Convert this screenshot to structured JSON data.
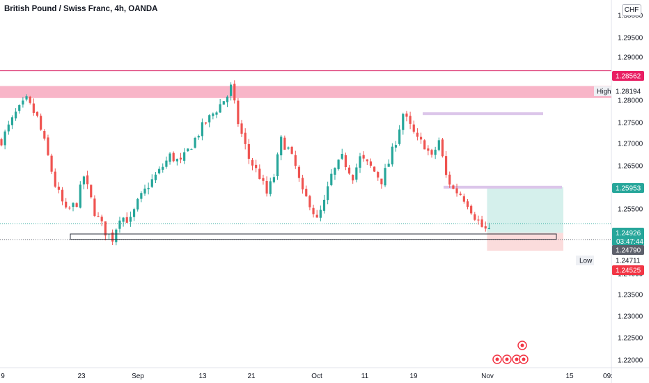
{
  "header": {
    "title": "British Pound / Swiss Franc, 4h, OANDA",
    "currency": "CHF"
  },
  "colors": {
    "up": "#26a69a",
    "down": "#ef5350",
    "resistance_zone": "#f8b5c8",
    "resistance_line": "#d81b60",
    "lavender": "#dcc6ea",
    "target_zone": "#d5f0ec",
    "stop_zone": "#fbdcdc",
    "price_tag": "#26a69a",
    "high_line_tag": "#e91e63",
    "stop_tag": "#f23645",
    "dark_tag": "#5d606b"
  },
  "price_tags": {
    "resistance": "1.28562",
    "high_label": "High",
    "high_value": "1.28194",
    "target": "1.25953",
    "current": "1.24926",
    "countdown": "03:47:44",
    "support": "1.24790",
    "low_label": "Low",
    "low_value": "1.24711",
    "stop": "1.24525"
  },
  "chart_data": {
    "type": "candlestick",
    "title": "British Pound / Swiss Franc, 4h, OANDA",
    "y_ticks": [
      "1.30000",
      "1.29500",
      "1.29000",
      "1.28000",
      "1.27500",
      "1.27000",
      "1.26500",
      "1.25500",
      "1.24000",
      "1.23500",
      "1.23000",
      "1.22500",
      "1.22000"
    ],
    "x_ticks": [
      "9",
      "23",
      "Sep",
      "13",
      "21",
      "Oct",
      "11",
      "19",
      "Nov",
      "15",
      "09:"
    ],
    "ylim": [
      1.219,
      1.3015
    ],
    "close_path": [
      [
        0,
        1.27
      ],
      [
        4,
        1.276
      ],
      [
        7,
        1.279
      ],
      [
        10,
        1.275
      ],
      [
        12,
        1.2695
      ],
      [
        15,
        1.26
      ],
      [
        18,
        1.254
      ],
      [
        21,
        1.256
      ],
      [
        23,
        1.262
      ],
      [
        26,
        1.254
      ],
      [
        29,
        1.2495
      ],
      [
        31,
        1.248
      ],
      [
        33,
        1.253
      ],
      [
        36,
        1.252
      ],
      [
        38,
        1.256
      ],
      [
        41,
        1.26
      ],
      [
        44,
        1.263
      ],
      [
        47,
        1.2665
      ],
      [
        50,
        1.265
      ],
      [
        53,
        1.269
      ],
      [
        56,
        1.273
      ],
      [
        59,
        1.276
      ],
      [
        61,
        1.278
      ],
      [
        63,
        1.28
      ],
      [
        64,
        1.2819
      ],
      [
        66,
        1.274
      ],
      [
        69,
        1.266
      ],
      [
        72,
        1.262
      ],
      [
        74,
        1.258
      ],
      [
        76,
        1.262
      ],
      [
        78,
        1.27
      ],
      [
        80,
        1.268
      ],
      [
        82,
        1.264
      ],
      [
        84,
        1.258
      ],
      [
        86,
        1.256
      ],
      [
        88,
        1.252
      ],
      [
        90,
        1.256
      ],
      [
        92,
        1.262
      ],
      [
        95,
        1.266
      ],
      [
        98,
        1.262
      ],
      [
        100,
        1.266
      ],
      [
        103,
        1.264
      ],
      [
        106,
        1.261
      ],
      [
        108,
        1.265
      ],
      [
        110,
        1.27
      ],
      [
        112,
        1.276
      ],
      [
        114,
        1.273
      ],
      [
        116,
        1.27
      ],
      [
        118,
        1.269
      ],
      [
        120,
        1.266
      ],
      [
        122,
        1.27
      ],
      [
        124,
        1.262
      ],
      [
        126,
        1.259
      ],
      [
        128,
        1.258
      ],
      [
        130,
        1.256
      ],
      [
        132,
        1.253
      ],
      [
        134,
        1.2506
      ],
      [
        136,
        1.2493
      ]
    ],
    "annotations": [
      {
        "kind": "resistance_zone",
        "y": [
          1.2795,
          1.2822
        ]
      },
      {
        "kind": "horizontal_line",
        "y": 1.28562
      },
      {
        "kind": "long_position",
        "entry": 1.24926,
        "target": 1.25953,
        "stop": 1.24525
      },
      {
        "kind": "support_box",
        "y": [
          1.2478,
          1.249
        ]
      },
      {
        "kind": "level",
        "y": 1.276
      },
      {
        "kind": "level",
        "y": 1.2595
      }
    ]
  }
}
